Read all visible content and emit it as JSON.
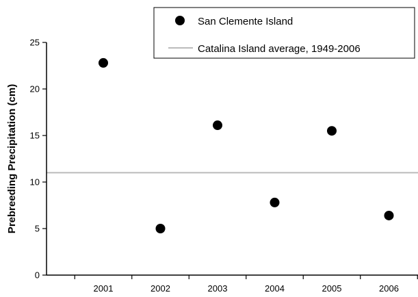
{
  "chart_data": {
    "type": "scatter",
    "title": "",
    "xlabel": "",
    "ylabel": "Prebreeding Precipitation (cm)",
    "categories": [
      "2001",
      "2002",
      "2003",
      "2004",
      "2005",
      "2006"
    ],
    "ylim": [
      0,
      25
    ],
    "yticks": [
      "0",
      "5",
      "10",
      "15",
      "20",
      "25"
    ],
    "grid": false,
    "legend_position": "top-right",
    "series": [
      {
        "name": "San Clemente Island",
        "kind": "points",
        "color": "#000000",
        "values": [
          22.8,
          5.0,
          16.1,
          7.8,
          15.5,
          6.4
        ]
      },
      {
        "name": "Catalina Island average, 1949-2006",
        "kind": "reference-line",
        "color": "#bbbbbb",
        "value": 11.0
      }
    ]
  }
}
